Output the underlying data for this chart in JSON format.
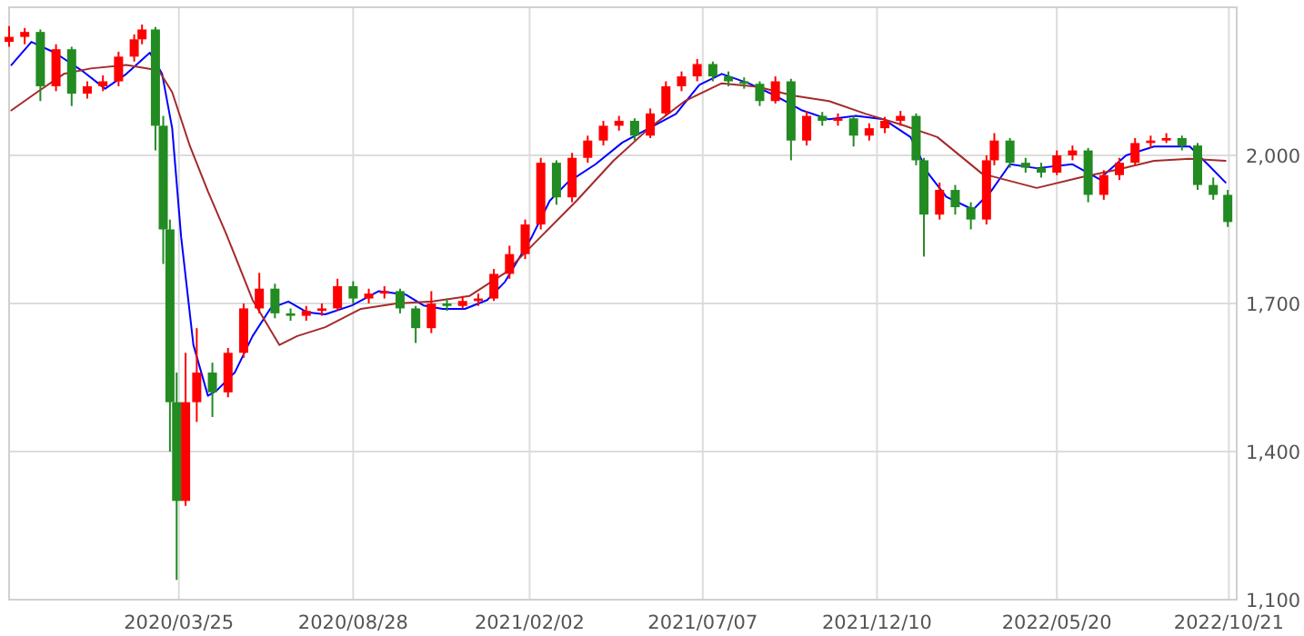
{
  "chart_data": {
    "type": "candlestick",
    "x": [
      "2019-10-25",
      "2019-11-08",
      "2019-11-22",
      "2019-12-06",
      "2019-12-20",
      "2020-01-03",
      "2020-01-17",
      "2020-01-31",
      "2020-02-14",
      "2020-02-21",
      "2020-03-04",
      "2020-03-11",
      "2020-03-17",
      "2020-03-23",
      "2020-03-31",
      "2020-04-10",
      "2020-04-24",
      "2020-05-08",
      "2020-05-22",
      "2020-06-05",
      "2020-06-19",
      "2020-07-03",
      "2020-07-17",
      "2020-07-31",
      "2020-08-14",
      "2020-08-28",
      "2020-09-11",
      "2020-09-25",
      "2020-10-09",
      "2020-10-23",
      "2020-11-06",
      "2020-11-20",
      "2020-12-04",
      "2020-12-18",
      "2021-01-01",
      "2021-01-15",
      "2021-01-29",
      "2021-02-12",
      "2021-02-26",
      "2021-03-12",
      "2021-03-26",
      "2021-04-09",
      "2021-04-23",
      "2021-05-07",
      "2021-05-21",
      "2021-06-04",
      "2021-06-18",
      "2021-07-02",
      "2021-07-16",
      "2021-07-30",
      "2021-08-13",
      "2021-08-27",
      "2021-09-10",
      "2021-09-24",
      "2021-10-08",
      "2021-10-22",
      "2021-11-05",
      "2021-11-19",
      "2021-12-03",
      "2021-12-17",
      "2021-12-31",
      "2022-01-14",
      "2022-01-21",
      "2022-02-04",
      "2022-02-18",
      "2022-03-04",
      "2022-03-18",
      "2022-03-25",
      "2022-04-08",
      "2022-04-22",
      "2022-05-06",
      "2022-05-20",
      "2022-06-03",
      "2022-06-17",
      "2022-07-01",
      "2022-07-15",
      "2022-07-29",
      "2022-08-12",
      "2022-08-26",
      "2022-09-09",
      "2022-09-23",
      "2022-10-07",
      "2022-10-20"
    ],
    "ohlc": [
      [
        2230,
        2262,
        2220,
        2240
      ],
      [
        2240,
        2258,
        2225,
        2250
      ],
      [
        2250,
        2255,
        2110,
        2140
      ],
      [
        2140,
        2225,
        2130,
        2215
      ],
      [
        2215,
        2220,
        2100,
        2125
      ],
      [
        2125,
        2150,
        2115,
        2140
      ],
      [
        2140,
        2162,
        2130,
        2150
      ],
      [
        2150,
        2210,
        2140,
        2200
      ],
      [
        2200,
        2245,
        2190,
        2235
      ],
      [
        2235,
        2265,
        2225,
        2255
      ],
      [
        2255,
        2260,
        2010,
        2060
      ],
      [
        2060,
        2080,
        1780,
        1850
      ],
      [
        1850,
        1870,
        1400,
        1500
      ],
      [
        1500,
        1560,
        1140,
        1300
      ],
      [
        1300,
        1600,
        1290,
        1500
      ],
      [
        1500,
        1650,
        1460,
        1560
      ],
      [
        1560,
        1580,
        1470,
        1520
      ],
      [
        1520,
        1610,
        1510,
        1600
      ],
      [
        1600,
        1700,
        1590,
        1690
      ],
      [
        1690,
        1762,
        1680,
        1730
      ],
      [
        1730,
        1740,
        1670,
        1680
      ],
      [
        1680,
        1690,
        1665,
        1675
      ],
      [
        1675,
        1695,
        1665,
        1685
      ],
      [
        1685,
        1700,
        1675,
        1690
      ],
      [
        1690,
        1750,
        1685,
        1735
      ],
      [
        1735,
        1745,
        1700,
        1710
      ],
      [
        1710,
        1730,
        1700,
        1720
      ],
      [
        1720,
        1735,
        1710,
        1725
      ],
      [
        1725,
        1730,
        1680,
        1690
      ],
      [
        1690,
        1695,
        1620,
        1650
      ],
      [
        1650,
        1725,
        1640,
        1700
      ],
      [
        1700,
        1710,
        1685,
        1695
      ],
      [
        1695,
        1715,
        1690,
        1705
      ],
      [
        1705,
        1720,
        1695,
        1710
      ],
      [
        1710,
        1770,
        1705,
        1760
      ],
      [
        1760,
        1817,
        1750,
        1800
      ],
      [
        1800,
        1870,
        1790,
        1860
      ],
      [
        1860,
        1995,
        1850,
        1985
      ],
      [
        1985,
        1990,
        1900,
        1915
      ],
      [
        1915,
        2005,
        1905,
        1995
      ],
      [
        1995,
        2040,
        1985,
        2030
      ],
      [
        2030,
        2070,
        2020,
        2060
      ],
      [
        2060,
        2080,
        2050,
        2070
      ],
      [
        2070,
        2075,
        2030,
        2040
      ],
      [
        2040,
        2095,
        2035,
        2085
      ],
      [
        2085,
        2150,
        2080,
        2140
      ],
      [
        2140,
        2170,
        2130,
        2160
      ],
      [
        2160,
        2195,
        2150,
        2185
      ],
      [
        2185,
        2190,
        2150,
        2160
      ],
      [
        2160,
        2170,
        2140,
        2150
      ],
      [
        2150,
        2158,
        2135,
        2145
      ],
      [
        2145,
        2150,
        2100,
        2110
      ],
      [
        2110,
        2160,
        2105,
        2150
      ],
      [
        2150,
        2155,
        1990,
        2030
      ],
      [
        2030,
        2090,
        2020,
        2080
      ],
      [
        2080,
        2088,
        2060,
        2070
      ],
      [
        2070,
        2085,
        2060,
        2075
      ],
      [
        2075,
        2080,
        2018,
        2040
      ],
      [
        2040,
        2065,
        2030,
        2055
      ],
      [
        2055,
        2078,
        2045,
        2070
      ],
      [
        2070,
        2090,
        2060,
        2080
      ],
      [
        2080,
        2085,
        1980,
        1990
      ],
      [
        1990,
        1995,
        1795,
        1880
      ],
      [
        1880,
        1945,
        1870,
        1930
      ],
      [
        1930,
        1940,
        1880,
        1895
      ],
      [
        1895,
        1905,
        1850,
        1870
      ],
      [
        1870,
        2000,
        1860,
        1990
      ],
      [
        1990,
        2045,
        1980,
        2030
      ],
      [
        2030,
        2035,
        1975,
        1985
      ],
      [
        1985,
        1995,
        1965,
        1975
      ],
      [
        1975,
        1985,
        1955,
        1965
      ],
      [
        1965,
        2010,
        1960,
        2000
      ],
      [
        2000,
        2020,
        1990,
        2010
      ],
      [
        2010,
        2015,
        1905,
        1920
      ],
      [
        1920,
        1970,
        1910,
        1960
      ],
      [
        1960,
        1995,
        1950,
        1985
      ],
      [
        1985,
        2035,
        1980,
        2025
      ],
      [
        2025,
        2040,
        2015,
        2030
      ],
      [
        2030,
        2045,
        2025,
        2035
      ],
      [
        2035,
        2040,
        2010,
        2020
      ],
      [
        2020,
        2025,
        1930,
        1940
      ],
      [
        1940,
        1955,
        1910,
        1920
      ],
      [
        1920,
        1930,
        1855,
        1865
      ]
    ],
    "colors": [
      "#ff0000",
      "#ff0000",
      "#228b22",
      "#ff0000",
      "#228b22",
      "#ff0000",
      "#ff0000",
      "#ff0000",
      "#ff0000",
      "#ff0000",
      "#228b22",
      "#228b22",
      "#228b22",
      "#228b22",
      "#ff0000",
      "#ff0000",
      "#228b22",
      "#ff0000",
      "#ff0000",
      "#ff0000",
      "#228b22",
      "#228b22",
      "#ff0000",
      "#ff0000",
      "#ff0000",
      "#228b22",
      "#ff0000",
      "#ff0000",
      "#228b22",
      "#228b22",
      "#ff0000",
      "#228b22",
      "#ff0000",
      "#ff0000",
      "#ff0000",
      "#ff0000",
      "#ff0000",
      "#ff0000",
      "#228b22",
      "#ff0000",
      "#ff0000",
      "#ff0000",
      "#ff0000",
      "#228b22",
      "#ff0000",
      "#ff0000",
      "#ff0000",
      "#ff0000",
      "#228b22",
      "#228b22",
      "#228b22",
      "#228b22",
      "#ff0000",
      "#228b22",
      "#ff0000",
      "#228b22",
      "#ff0000",
      "#228b22",
      "#ff0000",
      "#ff0000",
      "#ff0000",
      "#228b22",
      "#228b22",
      "#ff0000",
      "#228b22",
      "#228b22",
      "#ff0000",
      "#ff0000",
      "#228b22",
      "#228b22",
      "#228b22",
      "#ff0000",
      "#ff0000",
      "#228b22",
      "#ff0000",
      "#ff0000",
      "#ff0000",
      "#ff0000",
      "#ff0000",
      "#228b22",
      "#228b22",
      "#228b22",
      "#228b22"
    ],
    "series": [
      {
        "type": "line",
        "color": "#0000ff",
        "x": [
          "2019-10-27",
          "2019-11-14",
          "2019-12-05",
          "2019-12-29",
          "2020-01-19",
          "2020-02-07",
          "2020-02-28",
          "2020-03-10",
          "2020-03-19",
          "2020-03-27",
          "2020-04-07",
          "2020-04-20",
          "2020-04-28",
          "2020-05-14",
          "2020-05-30",
          "2020-06-15",
          "2020-07-01",
          "2020-07-18",
          "2020-08-03",
          "2020-08-27",
          "2020-09-20",
          "2020-10-14",
          "2020-10-30",
          "2020-11-16",
          "2020-12-06",
          "2020-12-26",
          "2021-01-11",
          "2021-02-04",
          "2021-02-20",
          "2021-03-08",
          "2021-04-02",
          "2021-04-26",
          "2021-05-20",
          "2021-06-13",
          "2021-07-04",
          "2021-07-24",
          "2021-08-17",
          "2021-09-10",
          "2021-10-04",
          "2021-10-28",
          "2021-11-21",
          "2021-12-16",
          "2022-01-09",
          "2022-01-25",
          "2022-02-10",
          "2022-03-06",
          "2022-03-22",
          "2022-04-08",
          "2022-05-02",
          "2022-06-03",
          "2022-06-27",
          "2022-07-21",
          "2022-08-15",
          "2022-09-16",
          "2022-10-02",
          "2022-10-18"
        ],
        "values": [
          2183,
          2230,
          2208,
          2172,
          2135,
          2165,
          2208,
          2165,
          2055,
          1835,
          1616,
          1513,
          1524,
          1560,
          1634,
          1690,
          1704,
          1682,
          1678,
          1696,
          1725,
          1718,
          1696,
          1689,
          1689,
          1707,
          1744,
          1835,
          1908,
          1945,
          1982,
          2026,
          2055,
          2084,
          2143,
          2165,
          2146,
          2121,
          2091,
          2073,
          2080,
          2073,
          2037,
          1963,
          1916,
          1890,
          1927,
          1982,
          1974,
          1982,
          1952,
          2000,
          2018,
          2018,
          1982,
          1945
        ]
      },
      {
        "type": "line",
        "color": "#a52a2a",
        "x": [
          "2019-10-27",
          "2019-11-19",
          "2019-12-13",
          "2020-01-06",
          "2020-02-07",
          "2020-03-07",
          "2020-03-19",
          "2020-04-04",
          "2020-04-20",
          "2020-05-06",
          "2020-05-30",
          "2020-06-23",
          "2020-07-09",
          "2020-08-03",
          "2020-09-04",
          "2020-10-06",
          "2020-11-07",
          "2020-12-10",
          "2021-01-11",
          "2021-02-12",
          "2021-03-16",
          "2021-04-18",
          "2021-05-20",
          "2021-06-21",
          "2021-07-24",
          "2021-08-25",
          "2021-09-26",
          "2021-10-28",
          "2021-11-30",
          "2022-01-01",
          "2022-02-02",
          "2022-03-14",
          "2022-05-02",
          "2022-06-11",
          "2022-07-13",
          "2022-08-15",
          "2022-09-16",
          "2022-10-18"
        ],
        "values": [
          2091,
          2128,
          2165,
          2176,
          2183,
          2172,
          2128,
          2018,
          1927,
          1843,
          1707,
          1616,
          1634,
          1652,
          1689,
          1700,
          1704,
          1715,
          1762,
          1835,
          1908,
          1989,
          2055,
          2110,
          2146,
          2139,
          2121,
          2110,
          2084,
          2062,
          2037,
          1963,
          1934,
          1956,
          1971,
          1989,
          1993,
          1989
        ]
      }
    ],
    "xlim": [
      "2019-10-25",
      "2022-10-28"
    ],
    "xticks": [
      {
        "value": "2020-03-25",
        "label": "2020/03/25"
      },
      {
        "value": "2020-08-28",
        "label": "2020/08/28"
      },
      {
        "value": "2021-02-02",
        "label": "2021/02/02"
      },
      {
        "value": "2021-07-07",
        "label": "2021/07/07"
      },
      {
        "value": "2021-12-10",
        "label": "2021/12/10"
      },
      {
        "value": "2022-05-20",
        "label": "2022/05/20"
      },
      {
        "value": "2022-10-21",
        "label": "2022/10/21"
      }
    ],
    "ylim": [
      1100,
      2300
    ],
    "yticks": [
      {
        "value": 1100,
        "label": "1,100"
      },
      {
        "value": 1400,
        "label": "1,400"
      },
      {
        "value": 1700,
        "label": "1,700"
      },
      {
        "value": 2000,
        "label": "2,000"
      }
    ],
    "grid": true
  }
}
